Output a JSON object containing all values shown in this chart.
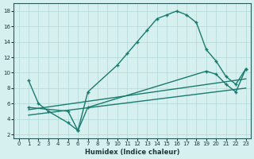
{
  "line1_x": [
    1,
    2,
    3,
    5,
    6,
    7,
    10,
    11,
    12,
    13,
    14,
    15,
    16,
    17,
    18,
    19,
    20,
    21,
    22,
    23
  ],
  "line1_y": [
    9,
    6,
    5,
    3.5,
    2.5,
    7.5,
    11,
    12.5,
    14,
    15.5,
    17,
    17.5,
    18,
    17.5,
    16.5,
    13,
    11.5,
    9.5,
    8.5,
    10.5
  ],
  "line2_x": [
    1,
    23
  ],
  "line2_y": [
    5.2,
    9.2
  ],
  "line3_x": [
    1,
    23
  ],
  "line3_y": [
    4.5,
    8.0
  ],
  "line4_x": [
    1,
    5,
    6,
    7,
    19,
    20,
    21,
    22,
    23
  ],
  "line4_y": [
    5.5,
    5.0,
    2.5,
    5.5,
    10.2,
    9.8,
    8.5,
    7.5,
    10.5
  ],
  "color": "#1a7a6e",
  "bg_color": "#d6f0f0",
  "grid_color": "#b0d8d8",
  "xlim": [
    -0.5,
    23.5
  ],
  "ylim": [
    1.5,
    19
  ],
  "yticks": [
    2,
    4,
    6,
    8,
    10,
    12,
    14,
    16,
    18
  ],
  "xticks": [
    0,
    1,
    2,
    3,
    4,
    5,
    6,
    7,
    8,
    9,
    10,
    11,
    12,
    13,
    14,
    15,
    16,
    17,
    18,
    19,
    20,
    21,
    22,
    23
  ],
  "xlabel": "Humidex (Indice chaleur)"
}
